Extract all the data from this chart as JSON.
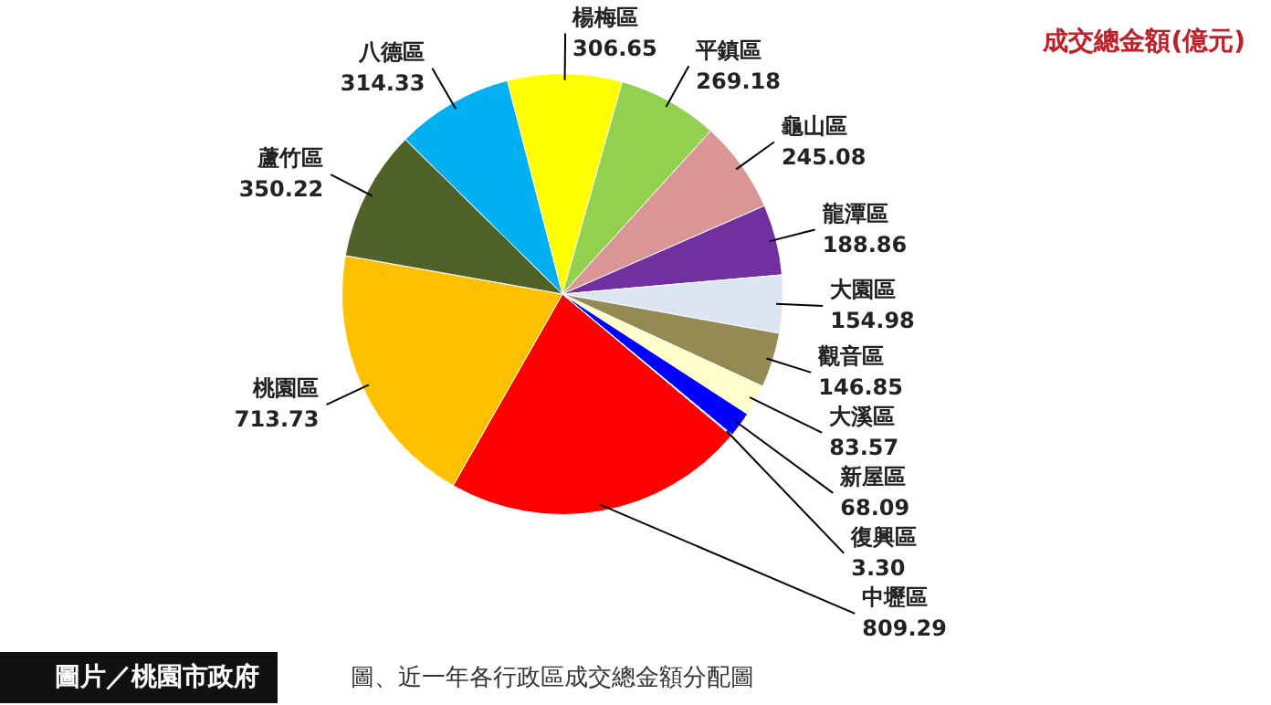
{
  "chart_data": {
    "type": "pie",
    "title": "成交總金額(億元)",
    "categories": [
      "中壢區",
      "桃園區",
      "蘆竹區",
      "八德區",
      "楊梅區",
      "平鎮區",
      "龜山區",
      "龍潭區",
      "大園區",
      "觀音區",
      "大溪區",
      "新屋區",
      "復興區"
    ],
    "values": [
      809.29,
      713.73,
      350.22,
      314.33,
      306.65,
      269.18,
      245.08,
      188.86,
      154.98,
      146.85,
      83.57,
      68.09,
      3.3
    ],
    "value_labels": [
      "809.29",
      "713.73",
      "350.22",
      "314.33",
      "306.65",
      "269.18",
      "245.08",
      "188.86",
      "154.98",
      "146.85",
      "83.57",
      "68.09",
      "3.30"
    ],
    "colors": [
      "#ff0000",
      "#ffc000",
      "#4f6228",
      "#00b0f0",
      "#ffff00",
      "#92d050",
      "#d99694",
      "#7030a0",
      "#dce6f2",
      "#948a54",
      "#ffffcc",
      "#0000ff",
      "#ff99cc"
    ],
    "legend": false,
    "annotations": [
      "圖片／桃園市政府",
      "圖、近一年各行政區成交總金額分配圖"
    ]
  }
}
